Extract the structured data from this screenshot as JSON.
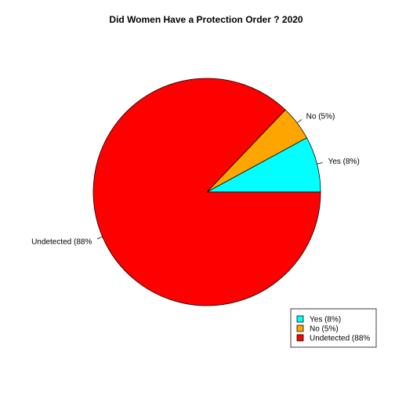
{
  "chart_data": {
    "type": "pie",
    "title": "Did Women Have a Protection Order ? 2020",
    "slices": [
      {
        "label": "Yes (8%)",
        "value": 8,
        "color": "#00ffff"
      },
      {
        "label": "No (5%)",
        "value": 5,
        "color": "#ffa500"
      },
      {
        "label": "Undetected (88%",
        "value": 88,
        "color": "#ff0000"
      }
    ],
    "start_angle_deg": 0,
    "direction": "counterclockwise",
    "legend": {
      "placement": "bottom-right",
      "entries": [
        "Yes (8%)",
        "No (5%)",
        "Undetected (88%"
      ]
    }
  }
}
